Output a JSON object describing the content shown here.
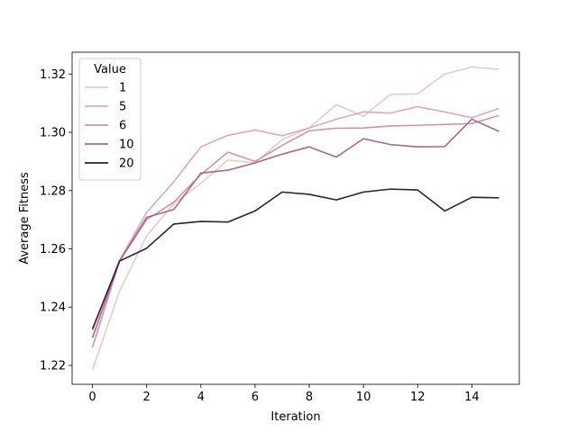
{
  "chart_data": {
    "type": "line",
    "title": "",
    "xlabel": "Iteration",
    "ylabel": "Average Fitness",
    "xlim": [
      -0.75,
      15.75
    ],
    "ylim": [
      1.2135,
      1.3275
    ],
    "xticks": [
      "0",
      "2",
      "4",
      "6",
      "8",
      "10",
      "12",
      "14"
    ],
    "yticks": [
      "1.22",
      "1.24",
      "1.26",
      "1.28",
      "1.30",
      "1.32"
    ],
    "x": [
      0,
      1,
      2,
      3,
      4,
      5,
      6,
      7,
      8,
      9,
      10,
      11,
      12,
      13,
      14,
      15
    ],
    "legend": {
      "title": "Value",
      "position": "top-left"
    },
    "series": [
      {
        "name": "1",
        "color": "#ecc9c8",
        "values": [
          1.2185,
          1.2455,
          1.2645,
          1.2755,
          1.2825,
          1.2905,
          1.2895,
          1.2975,
          1.3015,
          1.3095,
          1.3055,
          1.313,
          1.3132,
          1.32,
          1.3224,
          1.3216
        ]
      },
      {
        "name": "5",
        "color": "#dda9b7",
        "values": [
          1.232,
          1.256,
          1.2725,
          1.283,
          1.295,
          1.299,
          1.3008,
          1.2988,
          1.3015,
          1.3045,
          1.307,
          1.3066,
          1.3088,
          1.307,
          1.305,
          1.3082
        ]
      },
      {
        "name": "6",
        "color": "#cf93aa",
        "values": [
          1.2262,
          1.2558,
          1.27,
          1.276,
          1.2855,
          1.2932,
          1.29,
          1.2955,
          1.3005,
          1.3014,
          1.3015,
          1.3022,
          1.3024,
          1.3027,
          1.303,
          1.3058
        ]
      },
      {
        "name": "10",
        "color": "#a6688c",
        "values": [
          1.2295,
          1.2558,
          1.2708,
          1.2735,
          1.286,
          1.287,
          1.2895,
          1.2925,
          1.295,
          1.2915,
          1.2978,
          1.2958,
          1.295,
          1.2951,
          1.3045,
          1.3003
        ]
      },
      {
        "name": "20",
        "color": "#2d1e3e",
        "values": [
          1.2325,
          1.2558,
          1.2602,
          1.2685,
          1.2694,
          1.2692,
          1.273,
          1.2795,
          1.2787,
          1.2768,
          1.2795,
          1.2805,
          1.2802,
          1.273,
          1.2777,
          1.2775
        ]
      }
    ]
  }
}
